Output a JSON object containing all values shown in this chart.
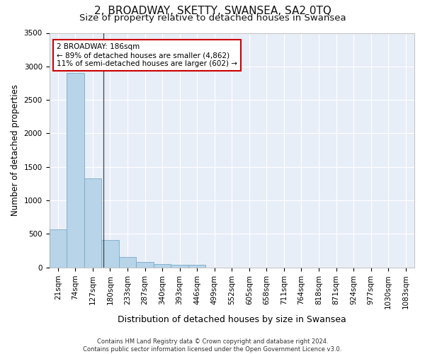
{
  "title": "2, BROADWAY, SKETTY, SWANSEA, SA2 0TQ",
  "subtitle": "Size of property relative to detached houses in Swansea",
  "xlabel": "Distribution of detached houses by size in Swansea",
  "ylabel": "Number of detached properties",
  "categories": [
    "21sqm",
    "74sqm",
    "127sqm",
    "180sqm",
    "233sqm",
    "287sqm",
    "340sqm",
    "393sqm",
    "446sqm",
    "499sqm",
    "552sqm",
    "605sqm",
    "658sqm",
    "711sqm",
    "764sqm",
    "818sqm",
    "871sqm",
    "924sqm",
    "977sqm",
    "1030sqm",
    "1083sqm"
  ],
  "values": [
    570,
    2900,
    1330,
    410,
    155,
    80,
    55,
    45,
    40,
    0,
    0,
    0,
    0,
    0,
    0,
    0,
    0,
    0,
    0,
    0,
    0
  ],
  "bar_color": "#b8d4e8",
  "bar_edge_color": "#7aaac8",
  "ylim": [
    0,
    3500
  ],
  "yticks": [
    0,
    500,
    1000,
    1500,
    2000,
    2500,
    3000,
    3500
  ],
  "annotation_text": "2 BROADWAY: 186sqm\n← 89% of detached houses are smaller (4,862)\n11% of semi-detached houses are larger (602) →",
  "annotation_box_facecolor": "#ffffff",
  "annotation_box_edgecolor": "#cc0000",
  "footnote": "Contains HM Land Registry data © Crown copyright and database right 2024.\nContains public sector information licensed under the Open Government Licence v3.0.",
  "plot_bg_color": "#e8eef8",
  "fig_bg_color": "#ffffff",
  "grid_color": "#ffffff",
  "title_fontsize": 11,
  "subtitle_fontsize": 9.5,
  "ylabel_fontsize": 8.5,
  "xlabel_fontsize": 9,
  "tick_fontsize": 7.5,
  "annotation_fontsize": 7.5,
  "footnote_fontsize": 6
}
